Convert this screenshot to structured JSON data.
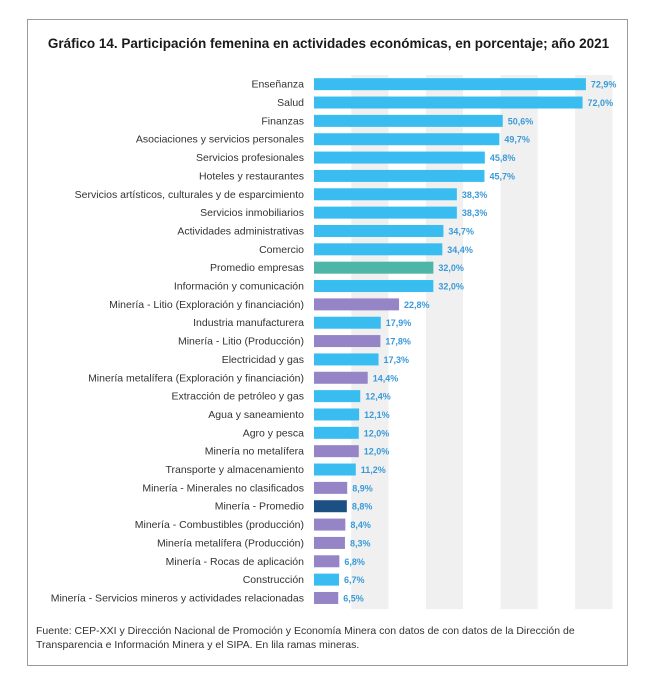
{
  "chart_data": {
    "type": "bar",
    "orientation": "horizontal",
    "title": "Gráfico 14. Participación femenina en actividades económicas, en porcentaje; año 2021",
    "xlim": [
      0,
      80
    ],
    "grid": true,
    "legend": "none",
    "categories": [
      "Enseñanza",
      "Salud",
      "Finanzas",
      "Asociaciones y servicios personales",
      "Servicios profesionales",
      "Hoteles y restaurantes",
      "Servicios artísticos, culturales y de esparcimiento",
      "Servicios inmobiliarios",
      "Actividades administrativas",
      "Comercio",
      "Promedio empresas",
      "Información y comunicación",
      "Minería - Litio (Exploración y financiación)",
      "Industria manufacturera",
      "Minería - Litio (Producción)",
      "Electricidad y gas",
      "Minería metalífera (Exploración y financiación)",
      "Extracción de petróleo y gas",
      "Agua y saneamiento",
      "Agro y pesca",
      "Minería no metalífera",
      "Transporte y almacenamiento",
      "Minería - Minerales no clasificados",
      "Minería - Promedio",
      "Minería - Combustibles (producción)",
      "Minería metalífera (Producción)",
      "Minería - Rocas de aplicación",
      "Construcción",
      "Minería - Servicios mineros y actividades relacionadas"
    ],
    "values": [
      72.9,
      72.0,
      50.6,
      49.7,
      45.8,
      45.7,
      38.3,
      38.3,
      34.7,
      34.4,
      32.0,
      32.0,
      22.8,
      17.9,
      17.8,
      17.3,
      14.4,
      12.4,
      12.1,
      12.0,
      12.0,
      11.2,
      8.9,
      8.8,
      8.4,
      8.3,
      6.8,
      6.7,
      6.5
    ],
    "value_labels": [
      "72,9%",
      "72,0%",
      "50,6%",
      "49,7%",
      "45,8%",
      "45,7%",
      "38,3%",
      "38,3%",
      "34,7%",
      "34,4%",
      "32,0%",
      "32,0%",
      "22,8%",
      "17,9%",
      "17,8%",
      "17,3%",
      "14,4%",
      "12,4%",
      "12,1%",
      "12,0%",
      "12,0%",
      "11,2%",
      "8,9%",
      "8,8%",
      "8,4%",
      "8,3%",
      "6,8%",
      "6,7%",
      "6,5%"
    ],
    "bar_groups": [
      "general",
      "general",
      "general",
      "general",
      "general",
      "general",
      "general",
      "general",
      "general",
      "general",
      "average",
      "general",
      "mining",
      "general",
      "mining",
      "general",
      "mining",
      "general",
      "general",
      "general",
      "mining",
      "general",
      "mining",
      "mining-average",
      "mining",
      "mining",
      "mining",
      "general",
      "mining"
    ],
    "colors": {
      "general": "#39bdf0",
      "average": "#4db6a8",
      "mining": "#9585c7",
      "mining-average": "#1c4f82",
      "label": "#3a9ad9",
      "grid-shade": "#f0f0f0"
    }
  },
  "source_note": "Fuente: CEP-XXI y Dirección Nacional de Promoción y Economía Minera con datos de con datos de la Dirección de Transparencia e Información Minera y el SIPA. En lila ramas mineras."
}
